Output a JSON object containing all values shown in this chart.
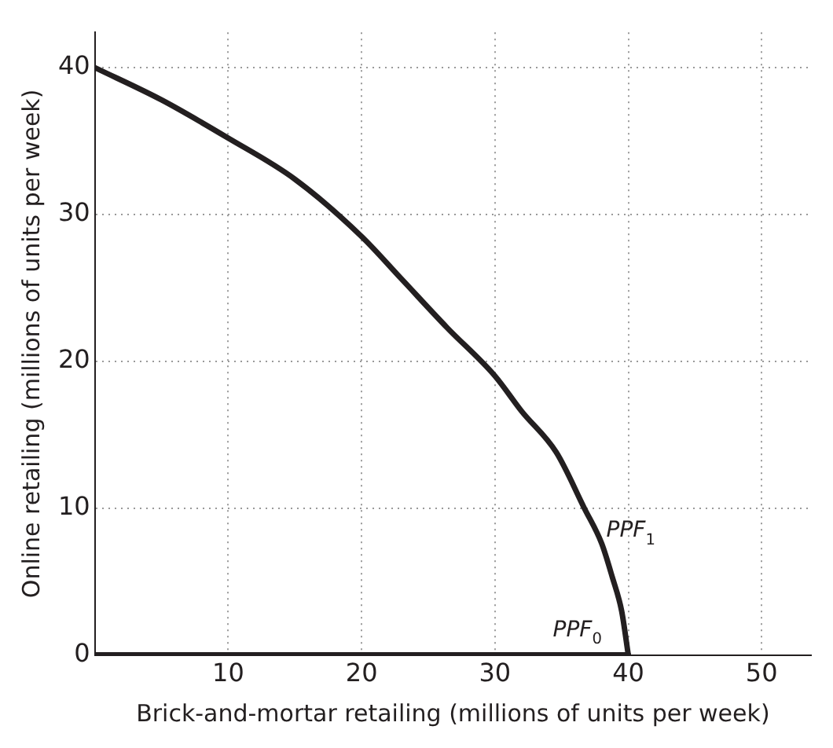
{
  "chart_data": {
    "type": "line",
    "xlabel": "Brick-and-mortar retailing (millions of units per week)",
    "ylabel": "Online retailing (millions of units per week)",
    "series": [
      {
        "name": "PPF$_{1}$",
        "color": "#231f20",
        "x": [
          0,
          5,
          10,
          15,
          20,
          23,
          26.4,
          30,
          32,
          34.6,
          36.7,
          38,
          38.8,
          39.5,
          40
        ],
        "values": [
          40,
          37.8,
          35.2,
          32.4,
          28.5,
          25.6,
          22.3,
          19,
          16.6,
          13.8,
          10,
          7.6,
          5.3,
          3,
          0
        ]
      },
      {
        "name": "PPF$_{0}$",
        "color": "#231f20",
        "x": [
          0,
          40
        ],
        "values": [
          0,
          0
        ]
      }
    ],
    "xlim": [
      0,
      53.7
    ],
    "xticks": [
      {
        "value": 0,
        "label": null
      },
      10,
      20,
      30,
      40,
      50
    ],
    "ylim": [
      0,
      42.4
    ],
    "yticks": [
      0,
      10,
      20,
      30,
      40
    ],
    "grid": true,
    "legend": false,
    "marker": "none",
    "line_style": "solid"
  }
}
